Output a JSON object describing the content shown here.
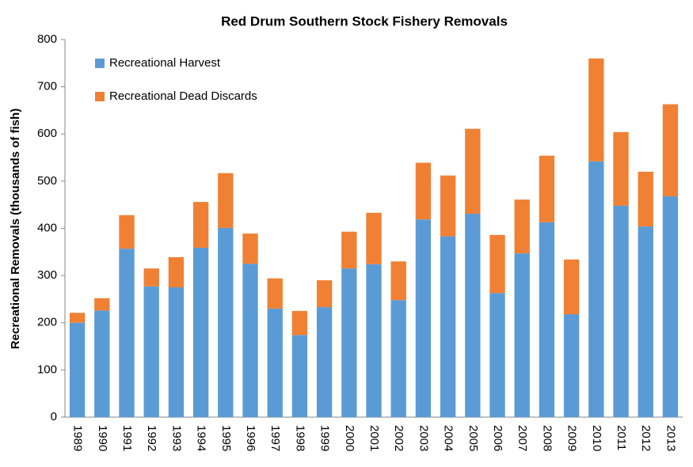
{
  "chart_data": {
    "type": "stacked_bar",
    "title": "Red Drum Southern Stock Fishery Removals",
    "y_label": "Recreational Removals (thousands of fish)",
    "categories": [
      "1989",
      "1990",
      "1991",
      "1992",
      "1993",
      "1994",
      "1995",
      "1996",
      "1997",
      "1998",
      "1999",
      "2000",
      "2001",
      "2002",
      "2003",
      "2004",
      "2005",
      "2006",
      "2007",
      "2008",
      "2009",
      "2010",
      "2011",
      "2012",
      "2013"
    ],
    "series": [
      {
        "name": "Recreational Harvest",
        "color": "#5b9bd5",
        "values": [
          200,
          226,
          357,
          277,
          275,
          359,
          401,
          325,
          230,
          174,
          233,
          315,
          324,
          248,
          419,
          383,
          431,
          263,
          347,
          413,
          218,
          542,
          448,
          404,
          468
        ]
      },
      {
        "name": "Recreational Dead Discards",
        "color": "#f08034",
        "values": [
          21,
          26,
          71,
          38,
          64,
          97,
          116,
          64,
          64,
          51,
          57,
          78,
          109,
          82,
          120,
          129,
          180,
          123,
          114,
          141,
          116,
          218,
          156,
          116,
          195
        ]
      }
    ],
    "ylim": [
      0,
      800
    ],
    "yticks": [
      0,
      100,
      200,
      300,
      400,
      500,
      600,
      700,
      800
    ],
    "legend": "upper left"
  }
}
